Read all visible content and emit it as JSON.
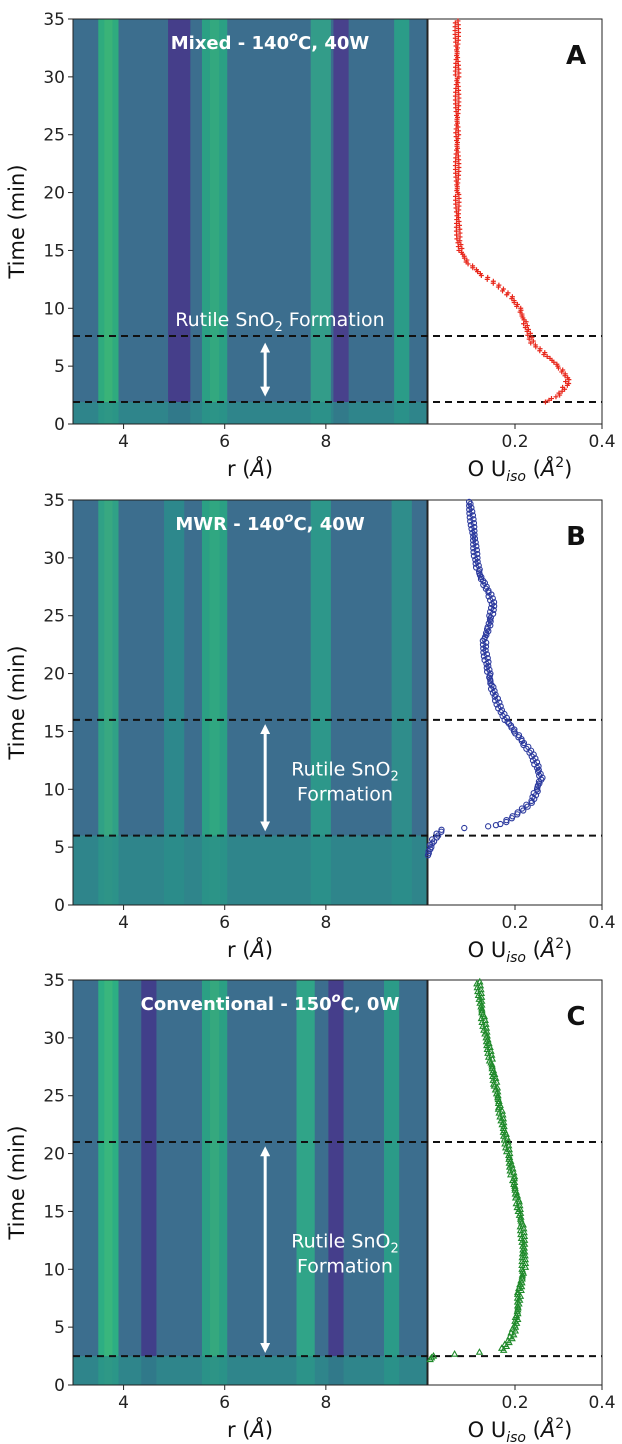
{
  "chart_data": [
    {
      "type": "heatmap+scatter",
      "panel_letter": "A",
      "heatmap_title": "Mixed - 140",
      "heatmap_title_sup": "o",
      "heatmap_title_tail": "C, 40W",
      "x_heat_label": "r",
      "x_heat_unit": "Å",
      "x_heat_ticks": [
        4,
        6,
        8
      ],
      "x_heat_range": [
        3.0,
        10.0
      ],
      "x_scatter_label_pre": "O U",
      "x_scatter_label_sub": "iso",
      "x_scatter_unit": "Å",
      "x_scatter_unit_sup": "2",
      "x_scatter_ticks": [
        "0.2",
        "0.4"
      ],
      "x_scatter_range": [
        0.0,
        0.4
      ],
      "ylabel": "Time (min)",
      "y_ticks": [
        0,
        5,
        10,
        15,
        20,
        25,
        30,
        35
      ],
      "y_range": [
        0,
        35
      ],
      "dashed_lines_y": [
        1.9,
        7.6
      ],
      "annotation_lines": [
        "Rutile SnO|2| Formation"
      ],
      "arrow_y": [
        2.8,
        6.6
      ],
      "arrow_x_r": 6.8,
      "marker": "plus",
      "color": "#e8281c",
      "series_points": [
        [
          1.9,
          0.27
        ],
        [
          2.5,
          0.3
        ],
        [
          3.0,
          0.31
        ],
        [
          3.5,
          0.32
        ],
        [
          4.0,
          0.32
        ],
        [
          5.0,
          0.3
        ],
        [
          6.0,
          0.27
        ],
        [
          7.0,
          0.24
        ],
        [
          8.0,
          0.23
        ],
        [
          9.0,
          0.22
        ],
        [
          10.0,
          0.21
        ],
        [
          11.0,
          0.19
        ],
        [
          12.0,
          0.16
        ],
        [
          13.0,
          0.12
        ],
        [
          14.0,
          0.09
        ],
        [
          15.0,
          0.075
        ],
        [
          16.0,
          0.07
        ],
        [
          18.0,
          0.068
        ],
        [
          20.0,
          0.067
        ],
        [
          25.0,
          0.067
        ],
        [
          30.0,
          0.067
        ],
        [
          35.0,
          0.066
        ]
      ]
    },
    {
      "type": "heatmap+scatter",
      "panel_letter": "B",
      "heatmap_title": "MWR - 140",
      "heatmap_title_sup": "o",
      "heatmap_title_tail": "C, 40W",
      "x_heat_label": "r",
      "x_heat_unit": "Å",
      "x_heat_ticks": [
        4,
        6,
        8
      ],
      "x_heat_range": [
        3.0,
        10.0
      ],
      "x_scatter_label_pre": "O U",
      "x_scatter_label_sub": "iso",
      "x_scatter_unit": "Å",
      "x_scatter_unit_sup": "2",
      "x_scatter_ticks": [
        "0.2",
        "0.4"
      ],
      "x_scatter_range": [
        0.0,
        0.4
      ],
      "ylabel": "Time (min)",
      "y_ticks": [
        0,
        5,
        10,
        15,
        20,
        25,
        30,
        35
      ],
      "y_range": [
        0,
        35
      ],
      "dashed_lines_y": [
        6.0,
        16.0
      ],
      "annotation_lines": [
        "Rutile SnO|2|",
        "Formation"
      ],
      "arrow_y": [
        6.8,
        15.2
      ],
      "arrow_x_r": 6.8,
      "marker": "circle",
      "color": "#2c3a9e",
      "series_points": [
        [
          4.3,
          0.0
        ],
        [
          5.0,
          0.005
        ],
        [
          5.5,
          0.01
        ],
        [
          6.0,
          0.02
        ],
        [
          6.5,
          0.03
        ],
        [
          6.8,
          0.14
        ],
        [
          7.0,
          0.17
        ],
        [
          8.0,
          0.21
        ],
        [
          9.0,
          0.24
        ],
        [
          10.0,
          0.25
        ],
        [
          11.0,
          0.26
        ],
        [
          12.0,
          0.25
        ],
        [
          13.0,
          0.24
        ],
        [
          14.0,
          0.22
        ],
        [
          15.0,
          0.2
        ],
        [
          16.0,
          0.18
        ],
        [
          17.0,
          0.165
        ],
        [
          18.0,
          0.155
        ],
        [
          19.0,
          0.145
        ],
        [
          20.0,
          0.14
        ],
        [
          21.0,
          0.135
        ],
        [
          22.0,
          0.13
        ],
        [
          23.0,
          0.13
        ],
        [
          24.0,
          0.14
        ],
        [
          25.0,
          0.145
        ],
        [
          26.0,
          0.15
        ],
        [
          27.0,
          0.14
        ],
        [
          28.0,
          0.125
        ],
        [
          29.0,
          0.115
        ],
        [
          30.0,
          0.11
        ],
        [
          32.0,
          0.105
        ],
        [
          35.0,
          0.095
        ]
      ]
    },
    {
      "type": "heatmap+scatter",
      "panel_letter": "C",
      "heatmap_title": "Conventional - 150",
      "heatmap_title_sup": "o",
      "heatmap_title_tail": "C, 0W",
      "x_heat_label": "r",
      "x_heat_unit": "Å",
      "x_heat_ticks": [
        4,
        6,
        8
      ],
      "x_heat_range": [
        3.0,
        10.0
      ],
      "x_scatter_label_pre": "O U",
      "x_scatter_label_sub": "iso",
      "x_scatter_unit": "Å",
      "x_scatter_unit_sup": "2",
      "x_scatter_ticks": [
        "0.2",
        "0.4"
      ],
      "x_scatter_range": [
        0.0,
        0.4
      ],
      "ylabel": "Time (min)",
      "y_ticks": [
        0,
        5,
        10,
        15,
        20,
        25,
        30,
        35
      ],
      "y_range": [
        0,
        35
      ],
      "dashed_lines_y": [
        2.5,
        21.0
      ],
      "annotation_lines": [
        "Rutile SnO|2|",
        "Formation"
      ],
      "arrow_y": [
        3.2,
        20.2
      ],
      "arrow_x_r": 6.8,
      "marker": "triangle",
      "color": "#1f8a2a",
      "series_points": [
        [
          2.2,
          0.005
        ],
        [
          2.5,
          0.01
        ],
        [
          3.0,
          0.17
        ],
        [
          4.0,
          0.19
        ],
        [
          5.0,
          0.2
        ],
        [
          6.0,
          0.205
        ],
        [
          8.0,
          0.21
        ],
        [
          10.0,
          0.22
        ],
        [
          12.0,
          0.22
        ],
        [
          14.0,
          0.215
        ],
        [
          16.0,
          0.205
        ],
        [
          18.0,
          0.195
        ],
        [
          20.0,
          0.185
        ],
        [
          22.0,
          0.175
        ],
        [
          24.0,
          0.165
        ],
        [
          26.0,
          0.155
        ],
        [
          28.0,
          0.145
        ],
        [
          30.0,
          0.135
        ],
        [
          32.0,
          0.125
        ],
        [
          35.0,
          0.115
        ]
      ]
    }
  ]
}
